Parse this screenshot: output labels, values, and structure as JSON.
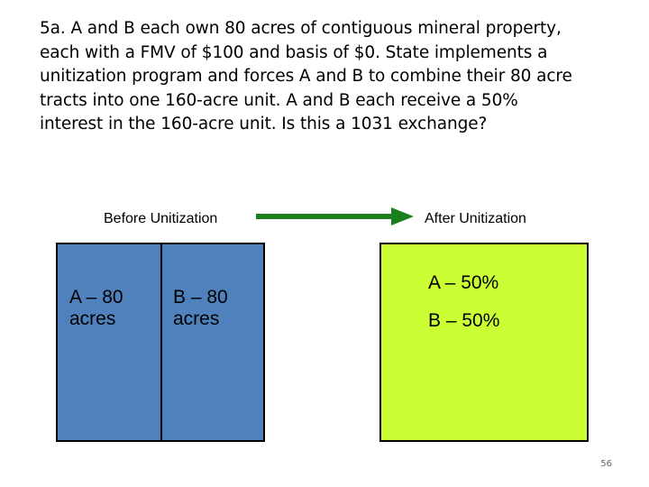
{
  "slide": {
    "title": "5a.  A and B each own 80 acres of contiguous mineral property,\neach with a FMV of $100 and basis of $0.  State implements a\nunitization program and forces A and B to combine their 80 acre\ntracts into one 160-acre unit.  A and B each receive a 50%\ninterest in the 160-acre unit.  Is this a 1031 exchange?",
    "page_number": "56"
  },
  "before": {
    "label": "Before Unitization",
    "color": "#4f81bd",
    "tracts": [
      {
        "text": "A – 80\nacres"
      },
      {
        "text": "B – 80\nacres"
      }
    ]
  },
  "arrow": {
    "color": "#1e7f1e",
    "direction": "right"
  },
  "after": {
    "label": "After Unitization",
    "color": "#ccff33",
    "interests": [
      {
        "text": "A – 50%"
      },
      {
        "text": "B – 50%"
      }
    ]
  }
}
